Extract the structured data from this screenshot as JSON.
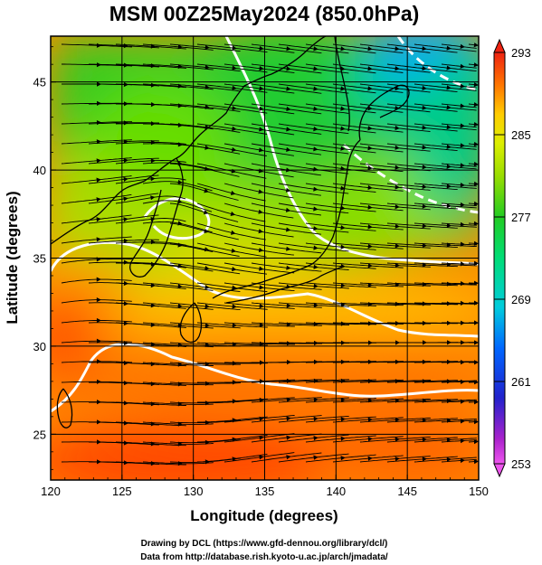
{
  "title": "MSM 00Z25May2024 (850.0hPa)",
  "x_axis": {
    "label": "Longitude (degrees)",
    "min": 120,
    "max": 150,
    "ticks": [
      "120",
      "125",
      "130",
      "135",
      "140",
      "145",
      "150"
    ]
  },
  "y_axis": {
    "label": "Latitude  (degrees)",
    "min": 22.4,
    "max": 47.6,
    "ticks": [
      "25",
      "30",
      "35",
      "40",
      "45"
    ]
  },
  "colorbar": {
    "min": 253,
    "max": 293,
    "tick_labels": [
      "293",
      "285",
      "277",
      "269",
      "261",
      "253"
    ],
    "palette": [
      "#ee55ee",
      "#9911cc",
      "#2222cc",
      "#0066ff",
      "#00ccdd",
      "#00dd88",
      "#22cc22",
      "#88dd00",
      "#ddee00",
      "#ffcc00",
      "#ff8800",
      "#ff4400",
      "#ee2211"
    ]
  },
  "credits": {
    "line1": "Drawing by DCL (https://www.gfd-dennou.org/library/dcl/)",
    "line2": "Data from http://database.rish.kyoto-u.ac.jp/arch/jmadata/"
  }
}
